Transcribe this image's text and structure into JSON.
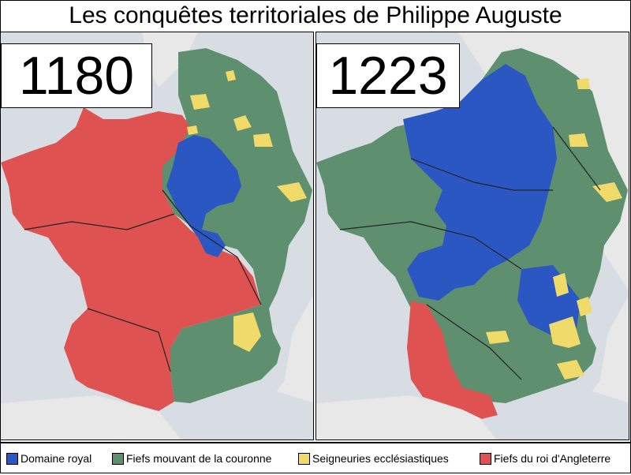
{
  "title": "Les conquêtes territoriales de Philippe Auguste",
  "maps": [
    {
      "year": "1180"
    },
    {
      "year": "1223"
    }
  ],
  "legend": [
    {
      "label": "Domaine royal",
      "color": "#2a57c2"
    },
    {
      "label": "Fiefs mouvant de la couronne",
      "color": "#5e8f6e"
    },
    {
      "label": "Seigneuries ecclésiastiques",
      "color": "#f0db6a"
    },
    {
      "label": "Fiefs du roi d'Angleterre",
      "color": "#df5252"
    }
  ],
  "colors": {
    "sea": "#d7dde2",
    "foreign_land": "#e8e8e8",
    "border": "#222222"
  }
}
